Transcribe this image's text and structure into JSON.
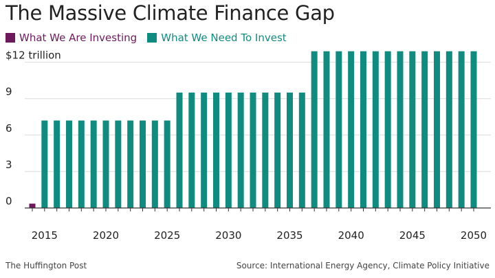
{
  "title": "The Massive Climate Finance Gap",
  "legend": [
    {
      "label": "What We Are Investing",
      "color": "#6d1a5c"
    },
    {
      "label": "What We Need To Invest",
      "color": "#0f8c7f"
    }
  ],
  "footer": {
    "credit": "The Huffington Post",
    "source": "Source: International Energy Agency, Climate Policy Initiative"
  },
  "chart_data": {
    "type": "bar",
    "title": "The Massive Climate Finance Gap",
    "xlabel": "",
    "ylabel": "",
    "ylim": [
      0,
      13
    ],
    "yticks": [
      0,
      3,
      6,
      9,
      12
    ],
    "ytick_labels": [
      "0",
      "3",
      "6",
      "9",
      "$12 trillion"
    ],
    "xticks": [
      2015,
      2020,
      2025,
      2030,
      2035,
      2040,
      2045,
      2050
    ],
    "grid": true,
    "legend_position": "top-left",
    "categories": [
      2014,
      2015,
      2016,
      2017,
      2018,
      2019,
      2020,
      2021,
      2022,
      2023,
      2024,
      2025,
      2026,
      2027,
      2028,
      2029,
      2030,
      2031,
      2032,
      2033,
      2034,
      2035,
      2036,
      2037,
      2038,
      2039,
      2040,
      2041,
      2042,
      2043,
      2044,
      2045,
      2046,
      2047,
      2048,
      2049,
      2050
    ],
    "series": [
      {
        "name": "What We Are Investing",
        "color": "#6d1a5c",
        "values": [
          0.36,
          0,
          0,
          0,
          0,
          0,
          0,
          0,
          0,
          0,
          0,
          0,
          0,
          0,
          0,
          0,
          0,
          0,
          0,
          0,
          0,
          0,
          0,
          0,
          0,
          0,
          0,
          0,
          0,
          0,
          0,
          0,
          0,
          0,
          0,
          0,
          0
        ]
      },
      {
        "name": "What We Need To Invest",
        "color": "#0f8c7f",
        "values": [
          0,
          7.2,
          7.2,
          7.2,
          7.2,
          7.2,
          7.2,
          7.2,
          7.2,
          7.2,
          7.2,
          7.2,
          9.5,
          9.5,
          9.5,
          9.5,
          9.5,
          9.5,
          9.5,
          9.5,
          9.5,
          9.5,
          9.5,
          12.9,
          12.9,
          12.9,
          12.9,
          12.9,
          12.9,
          12.9,
          12.9,
          12.9,
          12.9,
          12.9,
          12.9,
          12.9,
          12.9
        ]
      }
    ]
  }
}
